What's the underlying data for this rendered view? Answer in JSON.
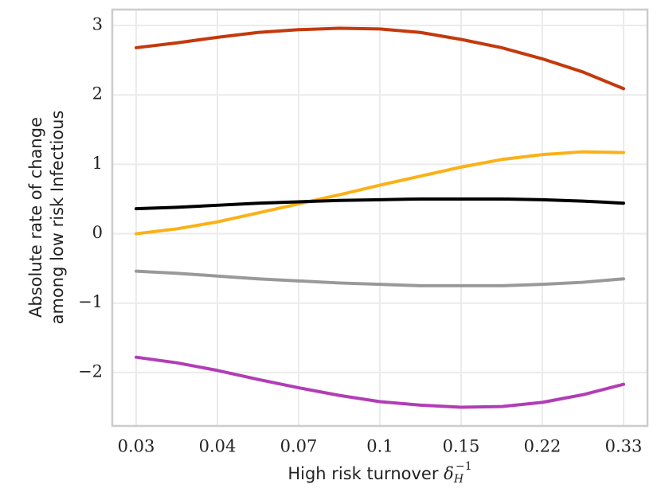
{
  "chart_data": {
    "type": "line",
    "ylabel": [
      "Absolute rate of change",
      "among low risk Infectious"
    ],
    "xlabel": "High risk turnover",
    "xlabel_symbol": "δ",
    "xlabel_sub": "H",
    "xlabel_sup": "−1",
    "categories": [
      "0.03",
      null,
      "0.04",
      null,
      "0.07",
      null,
      "0.1",
      null,
      "0.15",
      null,
      "0.22",
      null,
      "0.33"
    ],
    "series": [
      {
        "color": "#c4390c",
        "values": [
          2.68,
          2.75,
          2.83,
          2.9,
          2.94,
          2.96,
          2.95,
          2.9,
          2.8,
          2.68,
          2.52,
          2.33,
          2.09
        ]
      },
      {
        "color": "#fbb116",
        "values": [
          0,
          0.07,
          0.17,
          0.3,
          0.43,
          0.56,
          0.7,
          0.83,
          0.96,
          1.07,
          1.14,
          1.18,
          1.17
        ]
      },
      {
        "color": "#000000",
        "values": [
          0.36,
          0.38,
          0.41,
          0.44,
          0.46,
          0.48,
          0.49,
          0.5,
          0.5,
          0.5,
          0.49,
          0.47,
          0.44
        ]
      },
      {
        "color": "#999999",
        "values": [
          -0.54,
          -0.57,
          -0.61,
          -0.65,
          -0.68,
          -0.71,
          -0.73,
          -0.75,
          -0.75,
          -0.75,
          -0.73,
          -0.7,
          -0.65
        ]
      },
      {
        "color": "#b23db6",
        "values": [
          -1.78,
          -1.86,
          -1.97,
          -2.1,
          -2.22,
          -2.33,
          -2.42,
          -2.47,
          -2.5,
          -2.49,
          -2.43,
          -2.32,
          -2.17
        ]
      }
    ],
    "ylim": [
      -2.77,
      3.23
    ],
    "yticks": [
      {
        "value": -2,
        "label": "−2"
      },
      {
        "value": -1,
        "label": "−1"
      },
      0,
      1,
      2,
      3
    ],
    "grid": true
  }
}
